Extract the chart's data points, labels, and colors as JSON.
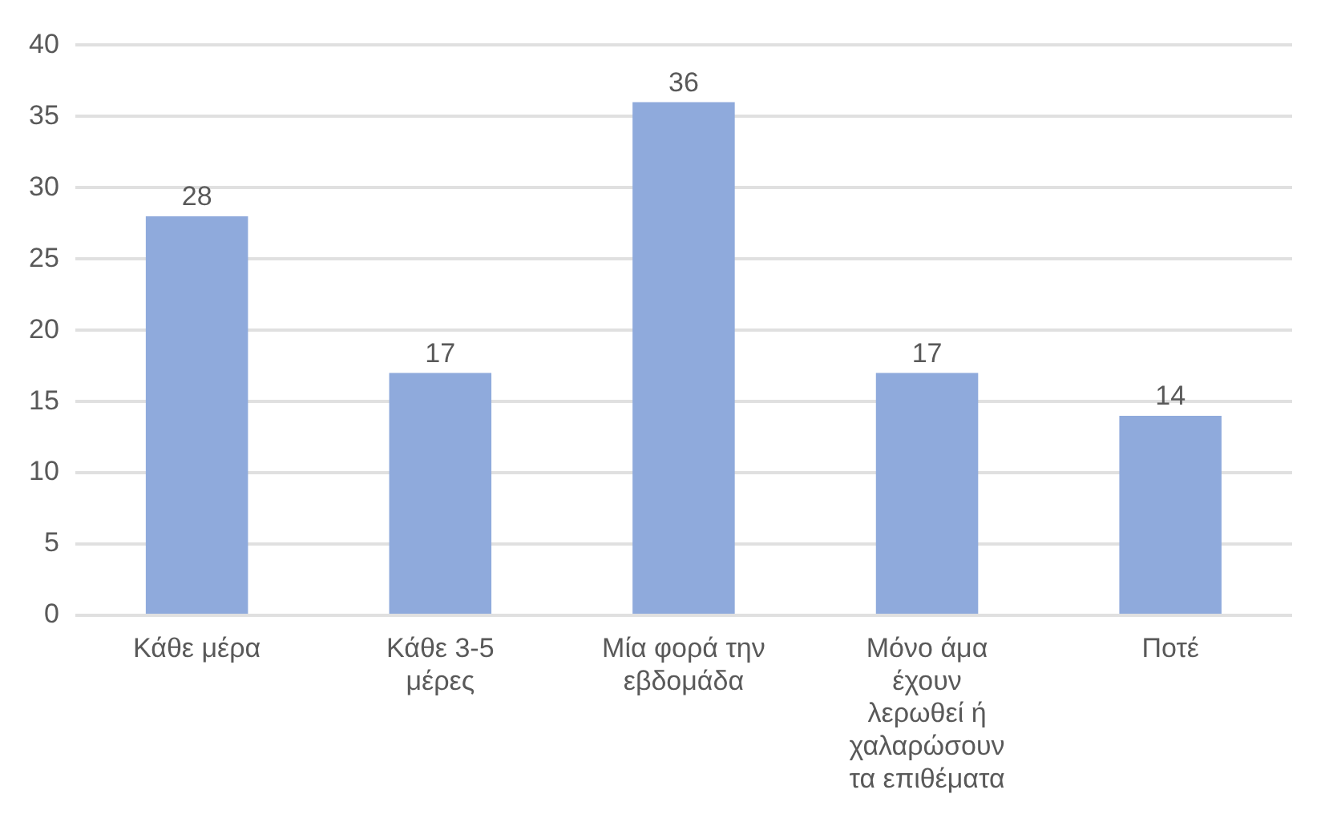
{
  "chart_data": {
    "type": "bar",
    "categories": [
      "Κάθε μέρα",
      "Κάθε 3-5 μέρες",
      "Μία φορά την εβδομάδα",
      "Μόνο άμα έχουν λερωθεί ή χαλαρώσουν τα επιθέματα",
      "Ποτέ"
    ],
    "values": [
      28,
      17,
      36,
      17,
      14
    ],
    "color": "#8faadc",
    "ylim": [
      0,
      40
    ],
    "yticks": [
      0,
      5,
      10,
      15,
      20,
      25,
      30,
      35,
      40
    ],
    "grid": "y",
    "data_labels": true,
    "legend": false
  }
}
